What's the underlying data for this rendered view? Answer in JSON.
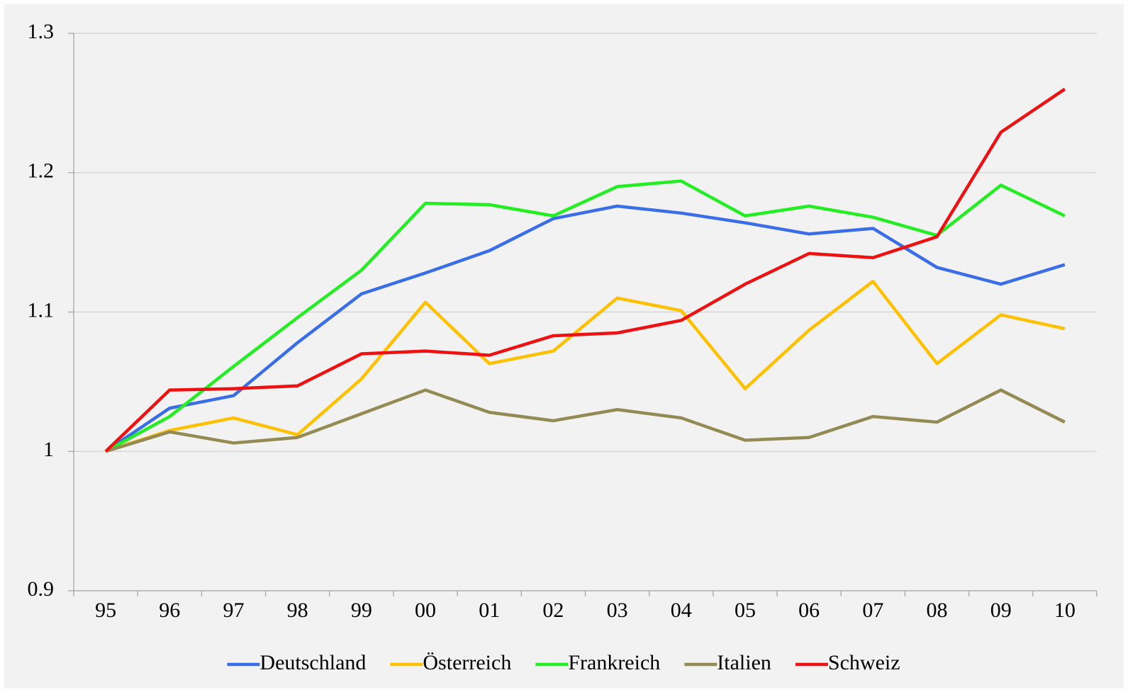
{
  "chart_data": {
    "type": "line",
    "categories": [
      "95",
      "96",
      "97",
      "98",
      "99",
      "00",
      "01",
      "02",
      "03",
      "04",
      "05",
      "06",
      "07",
      "08",
      "09",
      "10"
    ],
    "series": [
      {
        "name": "Deutschland",
        "color": "#3a6ee8",
        "values": [
          1.0,
          1.031,
          1.04,
          1.078,
          1.113,
          1.128,
          1.144,
          1.167,
          1.176,
          1.171,
          1.164,
          1.156,
          1.16,
          1.132,
          1.12,
          1.134
        ]
      },
      {
        "name": "Österreich",
        "color": "#ffc000",
        "values": [
          1.0,
          1.015,
          1.024,
          1.012,
          1.052,
          1.107,
          1.063,
          1.072,
          1.11,
          1.101,
          1.045,
          1.087,
          1.122,
          1.063,
          1.098,
          1.088
        ]
      },
      {
        "name": "Frankreich",
        "color": "#22ee22",
        "values": [
          1.0,
          1.025,
          1.061,
          1.096,
          1.13,
          1.178,
          1.177,
          1.169,
          1.19,
          1.194,
          1.169,
          1.176,
          1.168,
          1.155,
          1.191,
          1.169
        ]
      },
      {
        "name": "Italien",
        "color": "#948a54",
        "values": [
          1.0,
          1.014,
          1.006,
          1.01,
          1.027,
          1.044,
          1.028,
          1.022,
          1.03,
          1.024,
          1.008,
          1.01,
          1.025,
          1.021,
          1.044,
          1.021
        ]
      },
      {
        "name": "Schweiz",
        "color": "#ee1111",
        "values": [
          1.0,
          1.044,
          1.045,
          1.047,
          1.07,
          1.072,
          1.069,
          1.083,
          1.085,
          1.094,
          1.12,
          1.142,
          1.139,
          1.154,
          1.229,
          1.26
        ]
      }
    ],
    "ylim": [
      0.9,
      1.3
    ],
    "yticks": [
      0.9,
      1,
      1.1,
      1.2,
      1.3
    ],
    "grid": true,
    "legend": "bottom"
  }
}
